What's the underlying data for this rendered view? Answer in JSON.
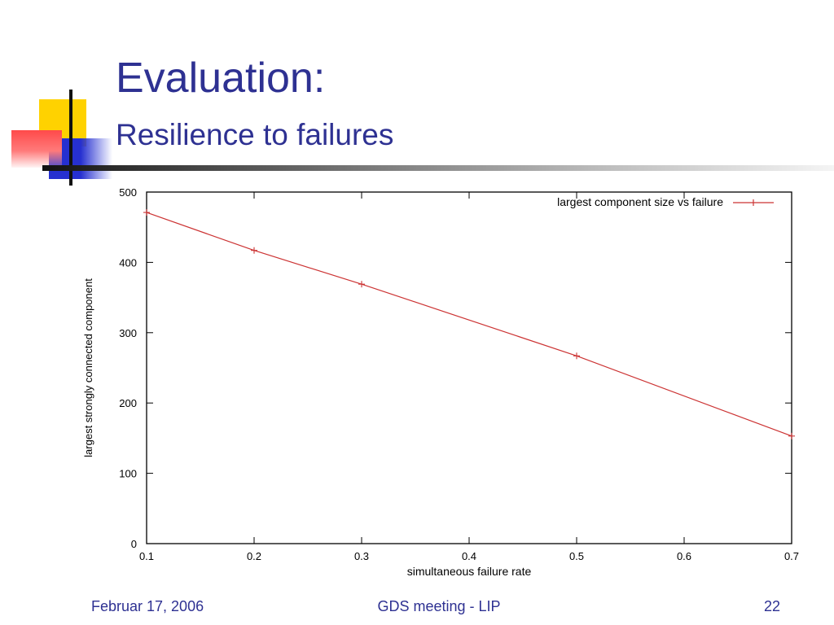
{
  "slide": {
    "title": "Evaluation:",
    "subtitle": "Resilience to failures"
  },
  "footer": {
    "date": "Februar 17, 2006",
    "center": "GDS meeting - LIP",
    "page": "22"
  },
  "colors": {
    "title": "#2e3192",
    "series": "#cc3333"
  },
  "chart_data": {
    "type": "line",
    "xlabel": "simultaneous failure rate",
    "ylabel": "largest strongly connected component",
    "xlim": [
      0.1,
      0.7
    ],
    "ylim": [
      0,
      500
    ],
    "x_ticks": [
      "0.1",
      "0.2",
      "0.3",
      "0.4",
      "0.5",
      "0.6",
      "0.7"
    ],
    "y_ticks": [
      "0",
      "100",
      "200",
      "300",
      "400",
      "500"
    ],
    "grid": false,
    "legend_position": "top-right",
    "series": [
      {
        "name": "largest component size vs failure",
        "x": [
          0.1,
          0.2,
          0.3,
          0.5,
          0.7
        ],
        "y": [
          471,
          417,
          369,
          267,
          153
        ]
      }
    ]
  }
}
